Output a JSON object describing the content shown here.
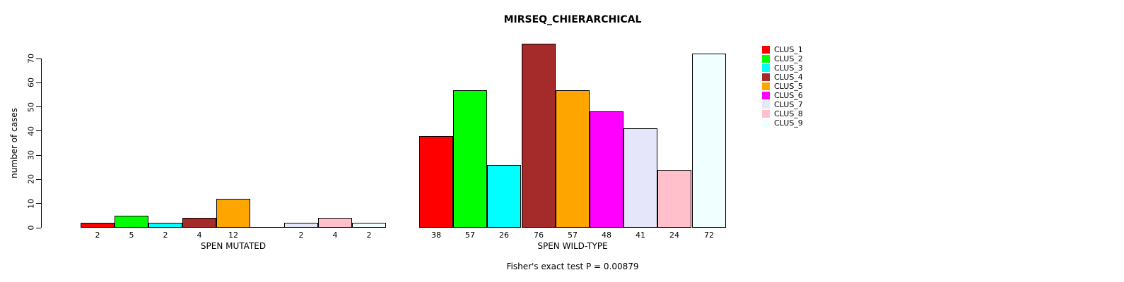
{
  "chart_data": {
    "type": "bar",
    "title": "MIRSEQ_CHIERARCHICAL",
    "ylabel": "number of cases",
    "ylim": [
      0,
      70
    ],
    "yticks": [
      0,
      10,
      20,
      30,
      40,
      50,
      60,
      70
    ],
    "categories": [
      "CLUS_1",
      "CLUS_2",
      "CLUS_3",
      "CLUS_4",
      "CLUS_5",
      "CLUS_6",
      "CLUS_7",
      "CLUS_8",
      "CLUS_9"
    ],
    "colors": [
      "#FF0000",
      "#00FF00",
      "#00FFFF",
      "#A52A2A",
      "#FFA500",
      "#FF00FF",
      "#E6E6FA",
      "#FFC0CB",
      "#F0FFFF"
    ],
    "series": [
      {
        "name": "SPEN MUTATED",
        "values": [
          2,
          5,
          2,
          4,
          12,
          0,
          2,
          4,
          2
        ]
      },
      {
        "name": "SPEN WILD-TYPE",
        "values": [
          38,
          57,
          26,
          76,
          57,
          48,
          41,
          24,
          72
        ]
      }
    ],
    "bar_labels_shown": true,
    "legend_position": "right",
    "grid": false,
    "footnote": "Fisher's exact test P = 0.00879",
    "background": "#ffffff",
    "axis_color": "#000000"
  }
}
